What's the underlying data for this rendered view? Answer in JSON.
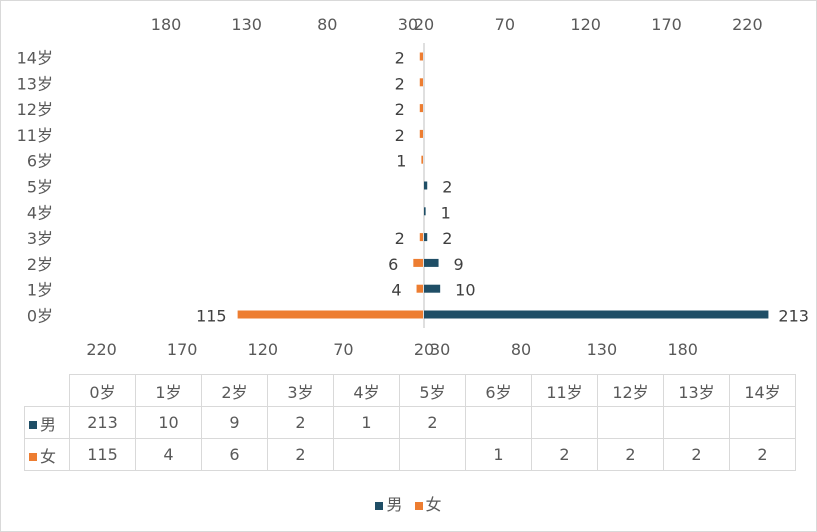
{
  "chart_data": {
    "type": "bar",
    "orientation": "horizontal-butterfly",
    "categories": [
      "0岁",
      "1岁",
      "2岁",
      "3岁",
      "4岁",
      "5岁",
      "6岁",
      "11岁",
      "12岁",
      "13岁",
      "14岁"
    ],
    "series": [
      {
        "name": "男",
        "color": "#1f4e66",
        "values": [
          213,
          10,
          9,
          2,
          1,
          2,
          null,
          null,
          null,
          null,
          null
        ]
      },
      {
        "name": "女",
        "color": "#ed7d31",
        "values": [
          115,
          4,
          6,
          2,
          null,
          null,
          1,
          2,
          2,
          2,
          2
        ]
      }
    ],
    "top_axis_ticks": [
      "180",
      "130",
      "80",
      "30",
      "20",
      "70",
      "120",
      "170",
      "220"
    ],
    "bottom_axis_ticks": [
      "220",
      "170",
      "120",
      "70",
      "20",
      "30",
      "80",
      "130",
      "180"
    ],
    "legend_position": "bottom",
    "data_table": true,
    "grid": false
  }
}
